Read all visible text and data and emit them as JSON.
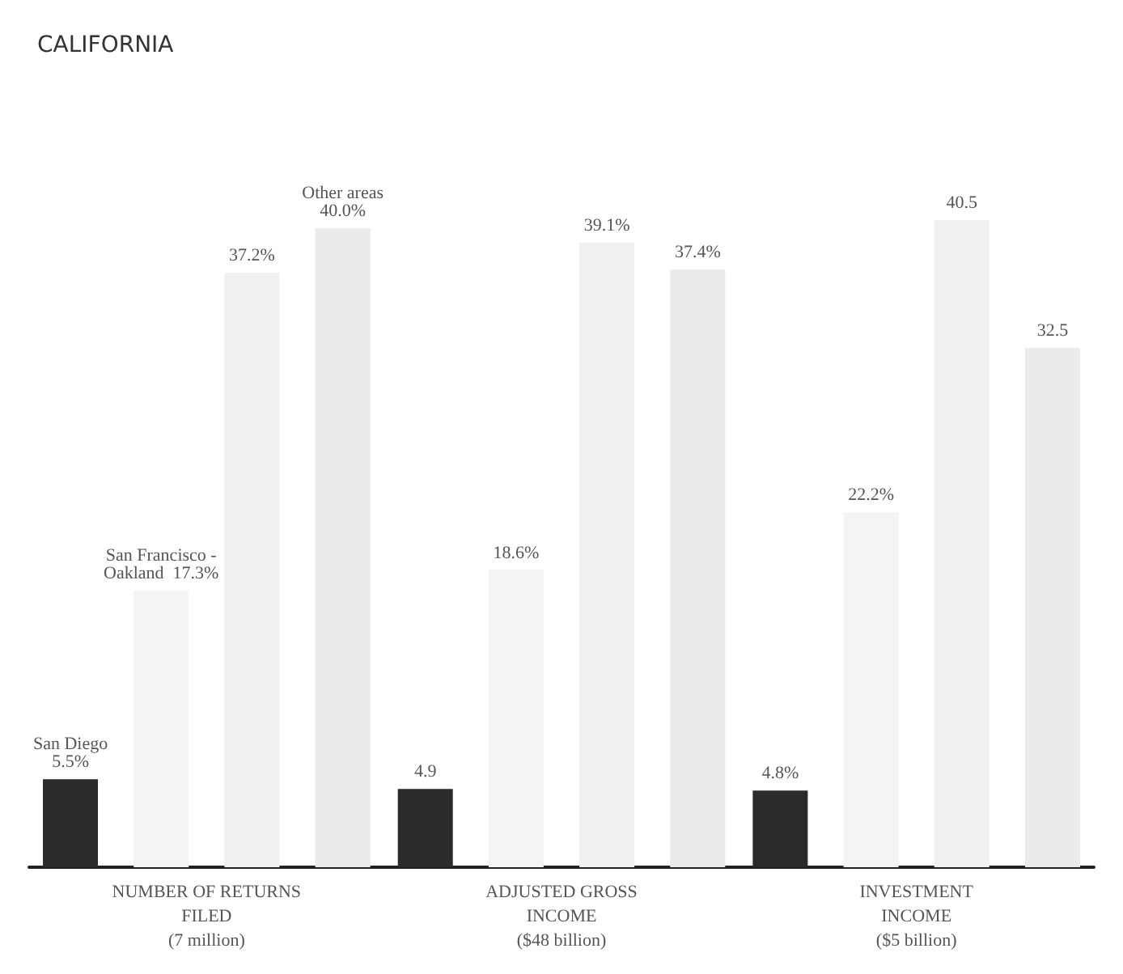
{
  "chart_data": {
    "type": "bar",
    "title": "CALIFORNIA",
    "categories": [
      "NUMBER OF RETURNS\nFILED\n(7 million)",
      "ADJUSTED GROSS\nINCOME\n($48 billion)",
      "INVESTMENT\nINCOME\n($5 billion)"
    ],
    "series": [
      {
        "name": "San Diego",
        "color": "#2b2b2b",
        "values": [
          5.5,
          4.9,
          4.8
        ],
        "value_labels": [
          "5.5%",
          "4.9",
          "4.8%"
        ]
      },
      {
        "name": "San Francisco - Oakland",
        "color": "#f4f4f4",
        "values": [
          17.3,
          18.6,
          22.2
        ],
        "value_labels": [
          "17.3%",
          "18.6%",
          "22.2%"
        ]
      },
      {
        "color": "#f0f0f0",
        "values": [
          37.2,
          39.1,
          40.5
        ],
        "value_labels": [
          "37.2%",
          "39.1%",
          "40.5"
        ]
      },
      {
        "name": "Other areas",
        "color": "#ebebeb",
        "values": [
          40.0,
          37.4,
          32.5
        ],
        "value_labels": [
          "40.0%",
          "37.4%",
          "32.5"
        ]
      }
    ],
    "legend": false
  }
}
